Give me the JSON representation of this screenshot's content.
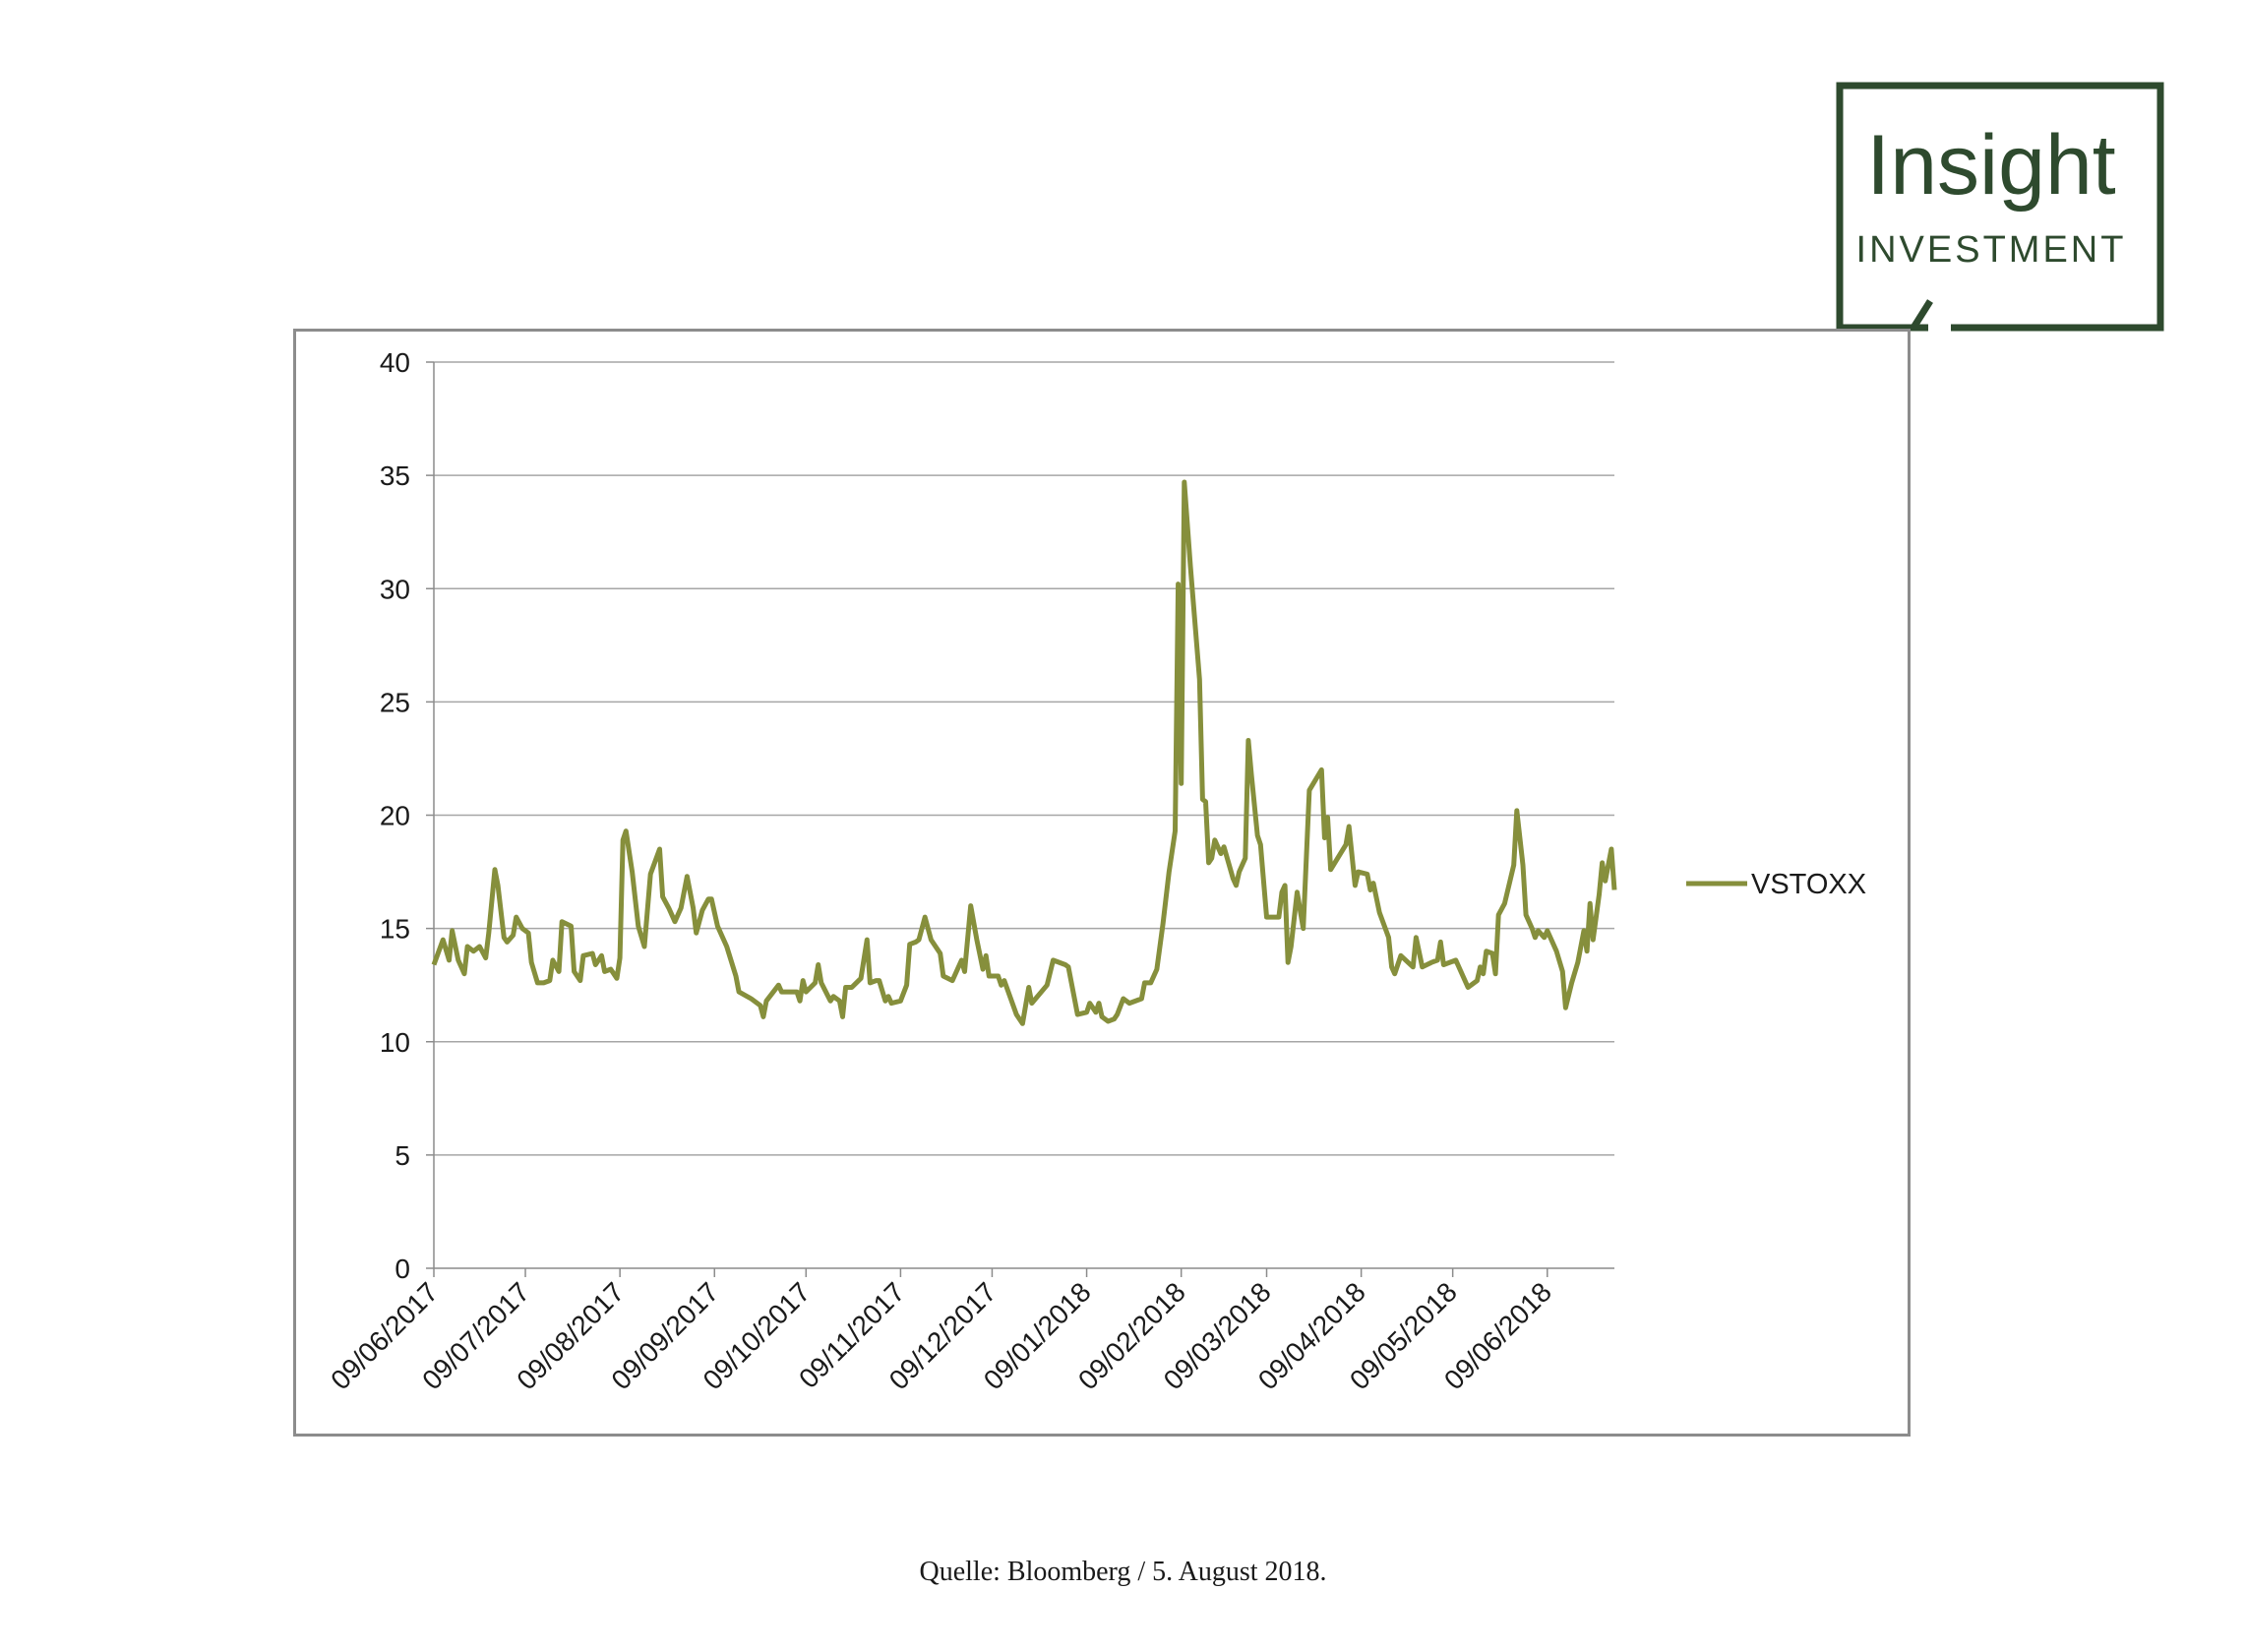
{
  "logo": {
    "line1": "Insight",
    "line2": "INVESTMENT",
    "color": "#2e4a2e"
  },
  "source_note": "Quelle: Bloomberg / 5. August 2018.",
  "colors": {
    "series": "#868f3c",
    "grid": "#a6a6a6",
    "axis": "#8c8c8c"
  },
  "chart_data": {
    "type": "line",
    "ylim": [
      0,
      40
    ],
    "yticks": [
      0,
      5,
      10,
      15,
      20,
      25,
      30,
      35,
      40
    ],
    "x_tick_labels": [
      "09/06/2017",
      "09/07/2017",
      "09/08/2017",
      "09/09/2017",
      "09/10/2017",
      "09/11/2017",
      "09/12/2017",
      "09/01/2018",
      "09/02/2018",
      "09/03/2018",
      "09/04/2018",
      "09/05/2018",
      "09/06/2018"
    ],
    "x_tick_dates": [
      "2017-06-09",
      "2017-07-09",
      "2017-08-09",
      "2017-09-09",
      "2017-10-09",
      "2017-11-09",
      "2017-12-09",
      "2018-01-09",
      "2018-02-09",
      "2018-03-09",
      "2018-04-09",
      "2018-05-09",
      "2018-06-09"
    ],
    "grid": true,
    "legend_position": "right",
    "series": [
      {
        "name": "VSTOXX",
        "points": [
          [
            "2017-06-09",
            13.4
          ],
          [
            "2017-06-12",
            14.5
          ],
          [
            "2017-06-14",
            13.6
          ],
          [
            "2017-06-15",
            14.9
          ],
          [
            "2017-06-17",
            13.6
          ],
          [
            "2017-06-19",
            13.0
          ],
          [
            "2017-06-20",
            14.2
          ],
          [
            "2017-06-22",
            14.0
          ],
          [
            "2017-06-24",
            14.2
          ],
          [
            "2017-06-26",
            13.7
          ],
          [
            "2017-06-27",
            14.8
          ],
          [
            "2017-06-29",
            17.6
          ],
          [
            "2017-06-30",
            16.9
          ],
          [
            "2017-07-02",
            14.6
          ],
          [
            "2017-07-03",
            14.4
          ],
          [
            "2017-07-05",
            14.7
          ],
          [
            "2017-07-06",
            15.5
          ],
          [
            "2017-07-08",
            15.0
          ],
          [
            "2017-07-10",
            14.8
          ],
          [
            "2017-07-11",
            13.5
          ],
          [
            "2017-07-13",
            12.6
          ],
          [
            "2017-07-15",
            12.6
          ],
          [
            "2017-07-17",
            12.7
          ],
          [
            "2017-07-18",
            13.6
          ],
          [
            "2017-07-20",
            13.1
          ],
          [
            "2017-07-21",
            15.3
          ],
          [
            "2017-07-24",
            15.1
          ],
          [
            "2017-07-25",
            13.1
          ],
          [
            "2017-07-27",
            12.7
          ],
          [
            "2017-07-28",
            13.8
          ],
          [
            "2017-07-31",
            13.9
          ],
          [
            "2017-08-01",
            13.4
          ],
          [
            "2017-08-03",
            13.8
          ],
          [
            "2017-08-04",
            13.1
          ],
          [
            "2017-08-06",
            13.2
          ],
          [
            "2017-08-08",
            12.8
          ],
          [
            "2017-08-09",
            13.7
          ],
          [
            "2017-08-10",
            18.9
          ],
          [
            "2017-08-11",
            19.3
          ],
          [
            "2017-08-13",
            17.5
          ],
          [
            "2017-08-15",
            15.1
          ],
          [
            "2017-08-17",
            14.2
          ],
          [
            "2017-08-19",
            17.4
          ],
          [
            "2017-08-22",
            18.5
          ],
          [
            "2017-08-23",
            16.4
          ],
          [
            "2017-08-25",
            15.9
          ],
          [
            "2017-08-27",
            15.3
          ],
          [
            "2017-08-29",
            15.9
          ],
          [
            "2017-08-31",
            17.3
          ],
          [
            "2017-09-02",
            15.9
          ],
          [
            "2017-09-03",
            14.8
          ],
          [
            "2017-09-05",
            15.8
          ],
          [
            "2017-09-07",
            16.3
          ],
          [
            "2017-09-08",
            16.3
          ],
          [
            "2017-09-10",
            15.1
          ],
          [
            "2017-09-13",
            14.2
          ],
          [
            "2017-09-16",
            12.9
          ],
          [
            "2017-09-17",
            12.2
          ],
          [
            "2017-09-21",
            11.9
          ],
          [
            "2017-09-24",
            11.6
          ],
          [
            "2017-09-25",
            11.1
          ],
          [
            "2017-09-26",
            11.8
          ],
          [
            "2017-09-30",
            12.5
          ],
          [
            "2017-10-01",
            12.2
          ],
          [
            "2017-10-06",
            12.2
          ],
          [
            "2017-10-07",
            11.8
          ],
          [
            "2017-10-08",
            12.7
          ],
          [
            "2017-10-09",
            12.2
          ],
          [
            "2017-10-12",
            12.6
          ],
          [
            "2017-10-13",
            13.4
          ],
          [
            "2017-10-14",
            12.6
          ],
          [
            "2017-10-17",
            11.8
          ],
          [
            "2017-10-18",
            12.0
          ],
          [
            "2017-10-20",
            11.8
          ],
          [
            "2017-10-21",
            11.1
          ],
          [
            "2017-10-22",
            12.4
          ],
          [
            "2017-10-24",
            12.4
          ],
          [
            "2017-10-27",
            12.8
          ],
          [
            "2017-10-29",
            14.5
          ],
          [
            "2017-10-30",
            12.6
          ],
          [
            "2017-11-01",
            12.7
          ],
          [
            "2017-11-02",
            12.7
          ],
          [
            "2017-11-04",
            11.8
          ],
          [
            "2017-11-05",
            12.0
          ],
          [
            "2017-11-06",
            11.7
          ],
          [
            "2017-11-09",
            11.8
          ],
          [
            "2017-11-11",
            12.5
          ],
          [
            "2017-11-12",
            14.3
          ],
          [
            "2017-11-14",
            14.4
          ],
          [
            "2017-11-15",
            14.5
          ],
          [
            "2017-11-17",
            15.5
          ],
          [
            "2017-11-19",
            14.5
          ],
          [
            "2017-11-22",
            13.9
          ],
          [
            "2017-11-23",
            12.9
          ],
          [
            "2017-11-26",
            12.7
          ],
          [
            "2017-11-29",
            13.6
          ],
          [
            "2017-11-30",
            13.1
          ],
          [
            "2017-12-02",
            16.0
          ],
          [
            "2017-12-04",
            14.5
          ],
          [
            "2017-12-06",
            13.2
          ],
          [
            "2017-12-07",
            13.8
          ],
          [
            "2017-12-08",
            12.9
          ],
          [
            "2017-12-11",
            12.9
          ],
          [
            "2017-12-12",
            12.5
          ],
          [
            "2017-12-13",
            12.7
          ],
          [
            "2017-12-17",
            11.2
          ],
          [
            "2017-12-19",
            10.8
          ],
          [
            "2017-12-21",
            12.4
          ],
          [
            "2017-12-22",
            11.7
          ],
          [
            "2017-12-27",
            12.5
          ],
          [
            "2017-12-29",
            13.6
          ],
          [
            "2018-01-02",
            13.4
          ],
          [
            "2018-01-03",
            13.3
          ],
          [
            "2018-01-06",
            11.2
          ],
          [
            "2018-01-09",
            11.3
          ],
          [
            "2018-01-10",
            11.7
          ],
          [
            "2018-01-11",
            11.5
          ],
          [
            "2018-01-12",
            11.3
          ],
          [
            "2018-01-13",
            11.7
          ],
          [
            "2018-01-14",
            11.1
          ],
          [
            "2018-01-16",
            10.9
          ],
          [
            "2018-01-18",
            11.0
          ],
          [
            "2018-01-19",
            11.2
          ],
          [
            "2018-01-21",
            11.9
          ],
          [
            "2018-01-23",
            11.7
          ],
          [
            "2018-01-27",
            11.9
          ],
          [
            "2018-01-28",
            12.6
          ],
          [
            "2018-01-30",
            12.6
          ],
          [
            "2018-02-01",
            13.2
          ],
          [
            "2018-02-03",
            15.2
          ],
          [
            "2018-02-05",
            17.5
          ],
          [
            "2018-02-07",
            19.3
          ],
          [
            "2018-02-08",
            30.2
          ],
          [
            "2018-02-09",
            21.4
          ],
          [
            "2018-02-10",
            34.7
          ],
          [
            "2018-02-12",
            31.0
          ],
          [
            "2018-02-15",
            26.0
          ],
          [
            "2018-02-16",
            20.7
          ],
          [
            "2018-02-17",
            20.6
          ],
          [
            "2018-02-18",
            17.9
          ],
          [
            "2018-02-19",
            18.1
          ],
          [
            "2018-02-20",
            18.9
          ],
          [
            "2018-02-22",
            18.3
          ],
          [
            "2018-02-23",
            18.6
          ],
          [
            "2018-02-26",
            17.2
          ],
          [
            "2018-02-27",
            16.9
          ],
          [
            "2018-02-28",
            17.5
          ],
          [
            "2018-03-02",
            18.1
          ],
          [
            "2018-03-03",
            23.3
          ],
          [
            "2018-03-04",
            21.8
          ],
          [
            "2018-03-06",
            19.1
          ],
          [
            "2018-03-07",
            18.7
          ],
          [
            "2018-03-09",
            15.5
          ],
          [
            "2018-03-12",
            15.5
          ],
          [
            "2018-03-13",
            15.5
          ],
          [
            "2018-03-14",
            16.6
          ],
          [
            "2018-03-15",
            16.9
          ],
          [
            "2018-03-16",
            13.5
          ],
          [
            "2018-03-17",
            14.2
          ],
          [
            "2018-03-19",
            16.6
          ],
          [
            "2018-03-21",
            15.0
          ],
          [
            "2018-03-23",
            21.1
          ],
          [
            "2018-03-27",
            22.0
          ],
          [
            "2018-03-28",
            19.0
          ],
          [
            "2018-03-29",
            19.9
          ],
          [
            "2018-03-30",
            17.6
          ],
          [
            "2018-04-04",
            18.7
          ],
          [
            "2018-04-05",
            19.5
          ],
          [
            "2018-04-07",
            16.9
          ],
          [
            "2018-04-08",
            17.5
          ],
          [
            "2018-04-11",
            17.4
          ],
          [
            "2018-04-12",
            16.7
          ],
          [
            "2018-04-13",
            17.0
          ],
          [
            "2018-04-15",
            15.7
          ],
          [
            "2018-04-18",
            14.6
          ],
          [
            "2018-04-19",
            13.3
          ],
          [
            "2018-04-20",
            13.0
          ],
          [
            "2018-04-22",
            13.8
          ],
          [
            "2018-04-26",
            13.3
          ],
          [
            "2018-04-27",
            14.6
          ],
          [
            "2018-04-29",
            13.3
          ],
          [
            "2018-05-02",
            13.5
          ],
          [
            "2018-05-04",
            13.6
          ],
          [
            "2018-05-05",
            14.4
          ],
          [
            "2018-05-06",
            13.4
          ],
          [
            "2018-05-10",
            13.6
          ],
          [
            "2018-05-13",
            12.7
          ],
          [
            "2018-05-14",
            12.4
          ],
          [
            "2018-05-17",
            12.7
          ],
          [
            "2018-05-18",
            13.3
          ],
          [
            "2018-05-19",
            13.0
          ],
          [
            "2018-05-20",
            14.0
          ],
          [
            "2018-05-22",
            13.9
          ],
          [
            "2018-05-23",
            13.0
          ],
          [
            "2018-05-24",
            15.6
          ],
          [
            "2018-05-26",
            16.1
          ],
          [
            "2018-05-29",
            17.8
          ],
          [
            "2018-05-30",
            20.2
          ],
          [
            "2018-06-01",
            17.8
          ],
          [
            "2018-06-02",
            15.6
          ],
          [
            "2018-06-04",
            15.0
          ],
          [
            "2018-06-05",
            14.6
          ],
          [
            "2018-06-06",
            14.9
          ],
          [
            "2018-06-08",
            14.6
          ],
          [
            "2018-06-09",
            14.9
          ],
          [
            "2018-06-12",
            14.0
          ],
          [
            "2018-06-14",
            13.1
          ],
          [
            "2018-06-15",
            11.5
          ],
          [
            "2018-06-17",
            12.6
          ],
          [
            "2018-06-19",
            13.5
          ],
          [
            "2018-06-21",
            14.9
          ],
          [
            "2018-06-22",
            14.0
          ],
          [
            "2018-06-23",
            16.1
          ],
          [
            "2018-06-24",
            14.5
          ],
          [
            "2018-06-26",
            16.5
          ],
          [
            "2018-06-27",
            17.9
          ],
          [
            "2018-06-28",
            17.1
          ],
          [
            "2018-06-30",
            18.5
          ],
          [
            "2018-07-01",
            16.7
          ]
        ]
      }
    ]
  }
}
